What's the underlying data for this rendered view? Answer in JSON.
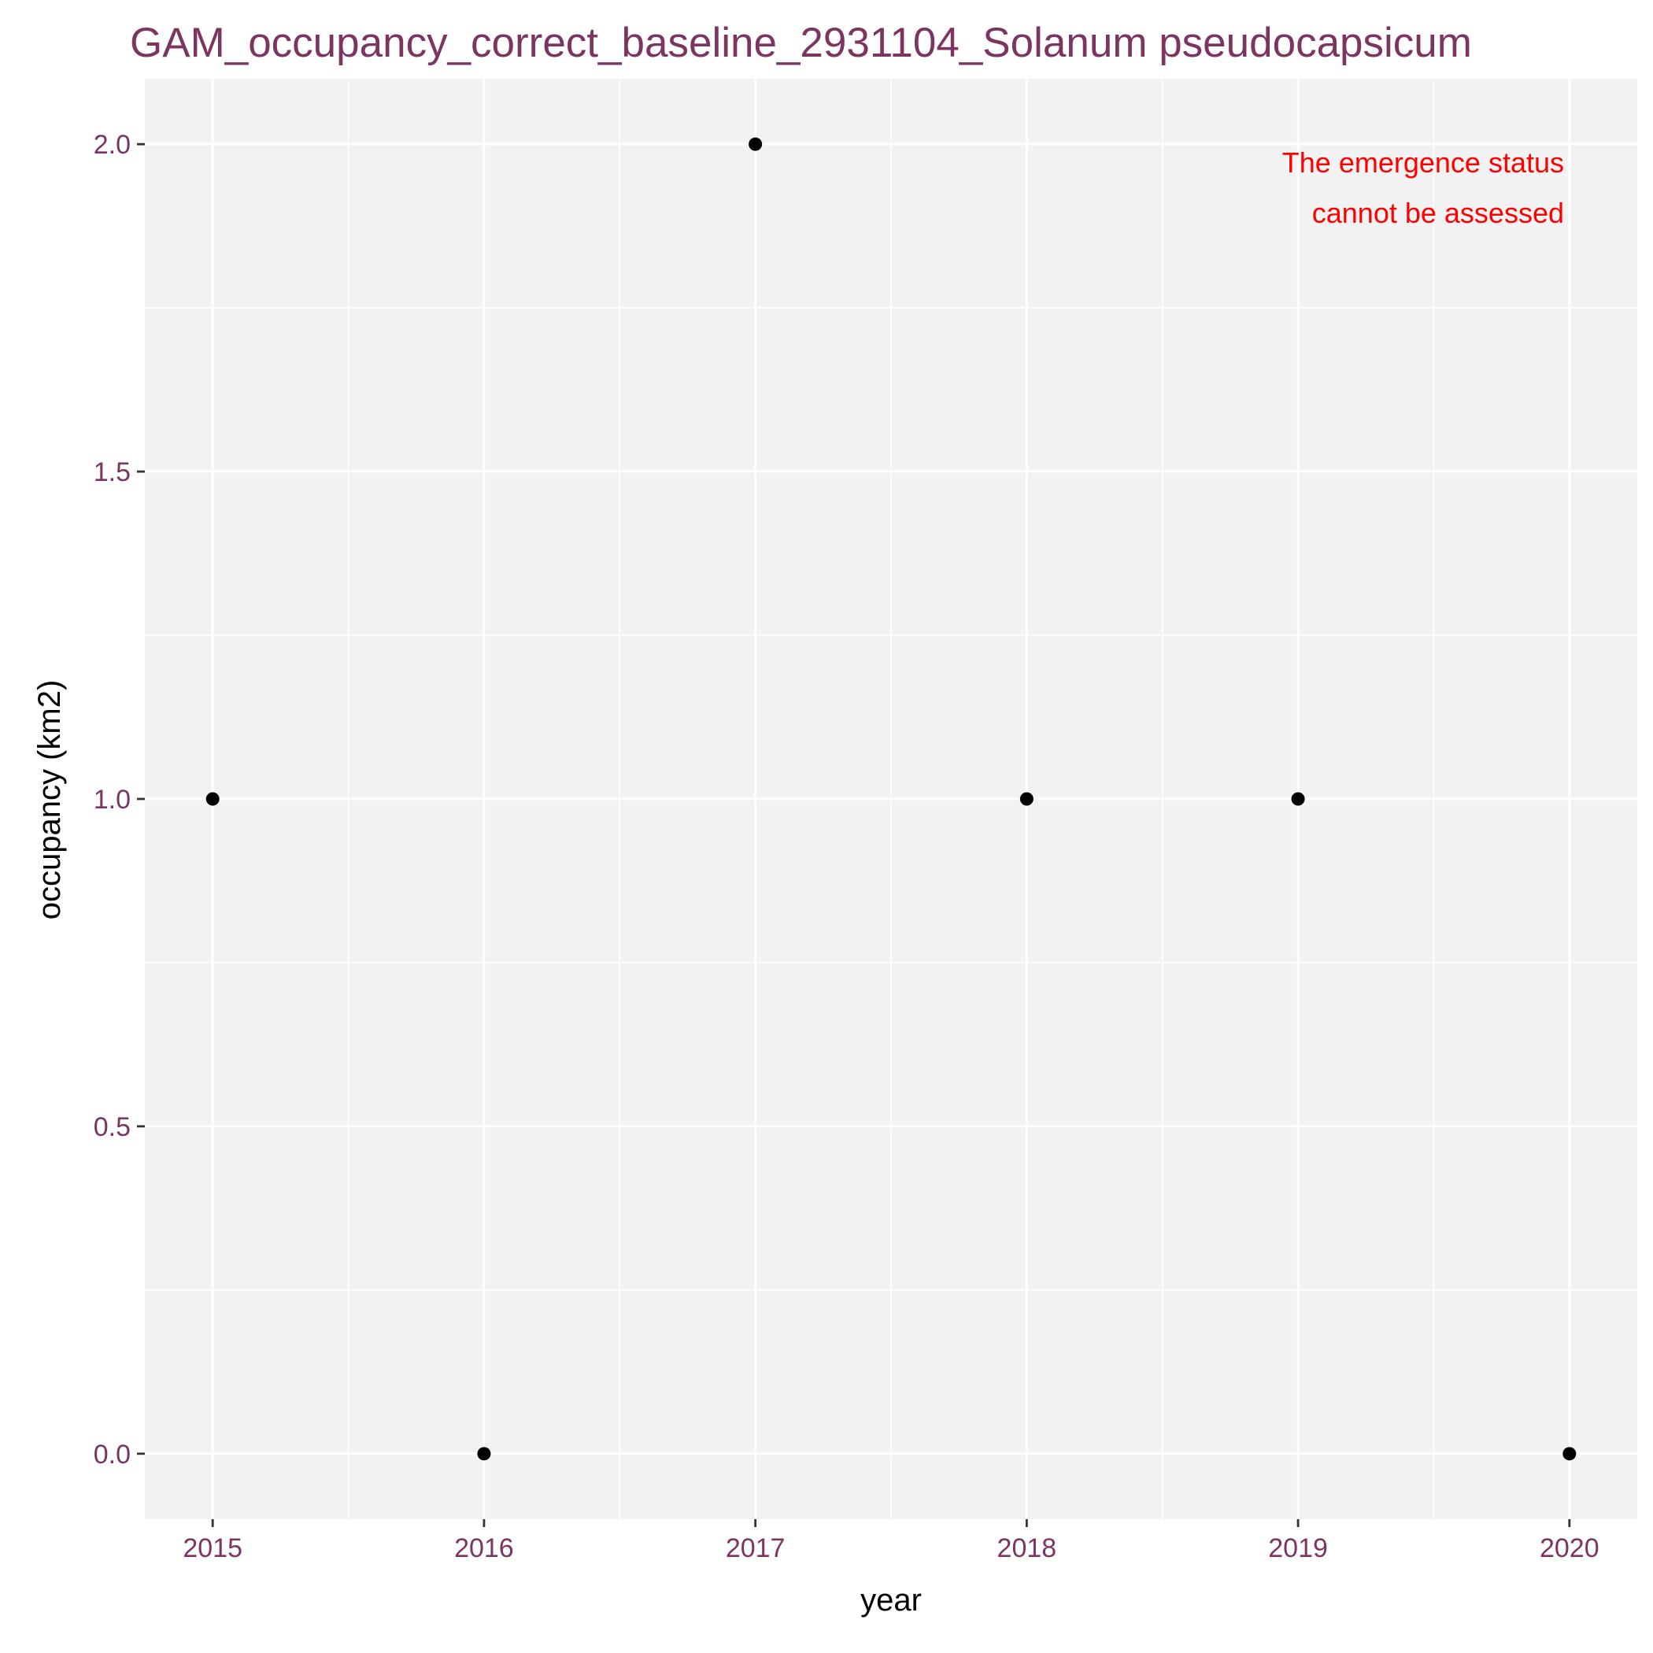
{
  "chart_data": {
    "type": "scatter",
    "title": "GAM_occupancy_correct_baseline_2931104_Solanum pseudocapsicum",
    "xlabel": "year",
    "ylabel": "occupancy (km2)",
    "x": [
      2015,
      2016,
      2017,
      2018,
      2019,
      2020
    ],
    "y": [
      1,
      0,
      2,
      1,
      1,
      0
    ],
    "xlim": [
      2014.75,
      2020.25
    ],
    "ylim": [
      -0.1,
      2.1
    ],
    "x_ticks": [
      2015,
      2016,
      2017,
      2018,
      2019,
      2020
    ],
    "x_tick_labels": [
      "2015",
      "2016",
      "2017",
      "2018",
      "2019",
      "2020"
    ],
    "y_ticks": [
      0,
      0.5,
      1,
      1.5,
      2
    ],
    "y_tick_labels": [
      "0.0",
      "0.5",
      "1.0",
      "1.5",
      "2.0"
    ],
    "grid": true,
    "annotation_lines": [
      "The emergence status",
      "cannot be assessed"
    ],
    "colors": {
      "panel_background": "#f2f2f2",
      "grid": "#ffffff",
      "points": "#000000",
      "title": "#7b3560",
      "tick_labels": "#7b3560",
      "annotation": "#ff0000"
    }
  }
}
